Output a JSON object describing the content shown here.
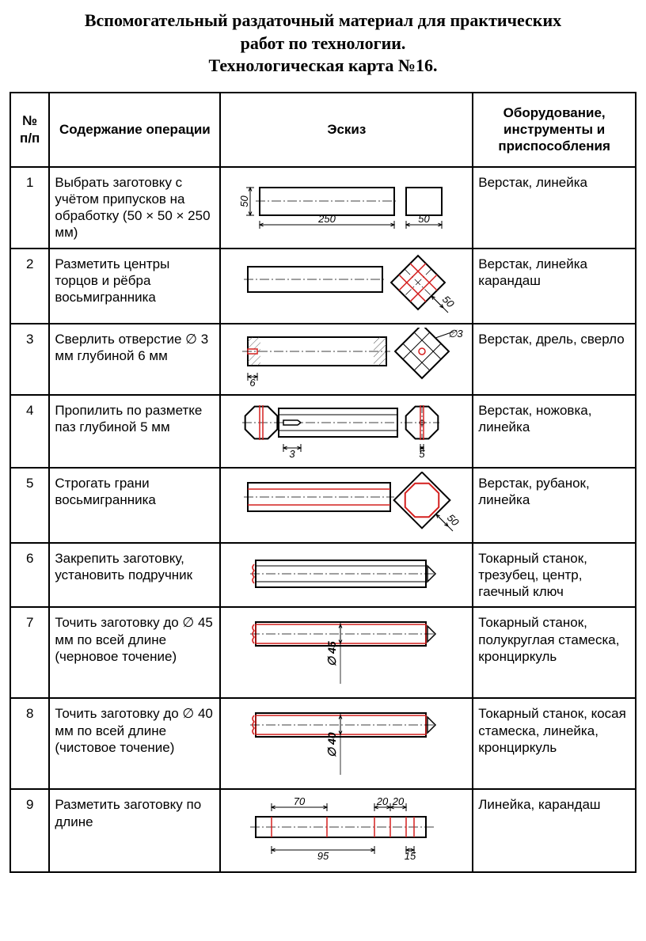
{
  "title_lines": [
    "Вспомогательный раздаточный материал для практических",
    "работ по технологии.",
    "Технологическая карта №16."
  ],
  "headers": {
    "num": "№ п/п",
    "op": "Содержание операции",
    "sketch": "Эскиз",
    "equip": "Оборудование, инструменты и приспособления"
  },
  "rows": [
    {
      "n": "1",
      "op": "Выбрать заготовку с учётом припусков на обработку (50 × 50 × 250 мм)",
      "equip": "Верстак, линейка",
      "sk": {
        "type": "r1",
        "h": "50",
        "w": "250",
        "w2": "50"
      }
    },
    {
      "n": "2",
      "op": "Разметить центры торцов и рёбра восьмигранника",
      "equip": "Верстак, линейка карандаш",
      "sk": {
        "type": "r2",
        "diag": "50"
      }
    },
    {
      "n": "3",
      "op": "Сверлить отверстие ∅ 3 мм глубиной 6 мм",
      "equip": "Верстак, дрель, сверло",
      "sk": {
        "type": "r3",
        "d": "∅3",
        "depth": "6"
      }
    },
    {
      "n": "4",
      "op": "Пропилить по разметке паз глубиной 5 мм",
      "equip": "Верстак, ножовка, линейка",
      "sk": {
        "type": "r4",
        "a": "3",
        "b": "5"
      }
    },
    {
      "n": "5",
      "op": "Строгать грани восьмигранника",
      "equip": "Верстак, рубанок, линейка",
      "sk": {
        "type": "r5",
        "diag": "50"
      }
    },
    {
      "n": "6",
      "op": "Закрепить заготовку, установить подручник",
      "equip": "Токарный станок, трезубец, центр, гаечный ключ",
      "sk": {
        "type": "r6"
      }
    },
    {
      "n": "7",
      "op": "Точить заготовку до ∅ 45 мм по всей длине (черновое точение)",
      "equip": "Токарный станок, полукруглая стамеска, кронциркуль",
      "sk": {
        "type": "r7",
        "dia": "∅ 45"
      }
    },
    {
      "n": "8",
      "op": "Точить заготовку до ∅ 40 мм по всей длине (чистовое точение)",
      "equip": "Токарный станок, косая стамеска, линейка, кронциркуль",
      "sk": {
        "type": "r8",
        "dia": "∅ 40"
      }
    },
    {
      "n": "9",
      "op": "Разметить заготовку по длине",
      "equip": "Линейка, карандаш",
      "sk": {
        "type": "r9",
        "d1": "70",
        "d2": "20",
        "d3": "20",
        "d4": "95",
        "d5": "15"
      }
    }
  ],
  "colors": {
    "stroke": "#000000",
    "red": "#d4201f",
    "hatch": "#5a5a5a"
  }
}
